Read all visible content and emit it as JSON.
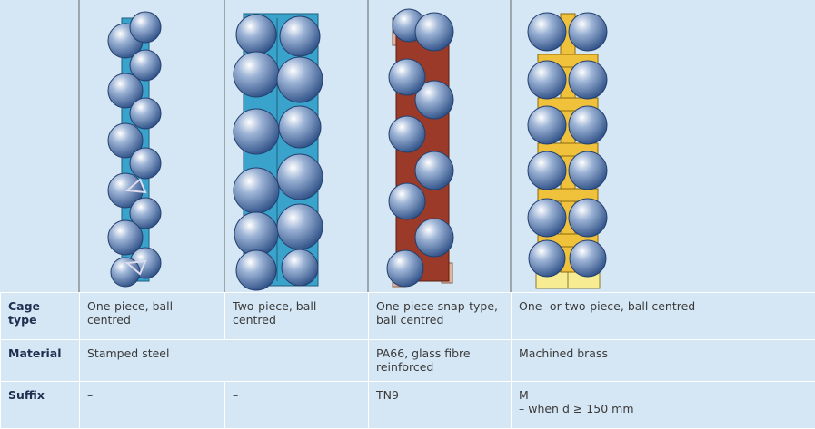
{
  "table": {
    "rows": [
      {
        "label": "Cage type",
        "cells": [
          "One-piece, ball centred",
          "Two-piece, ball centred",
          "One-piece snap-type, ball centred",
          "One- or two-piece, ball centred"
        ]
      },
      {
        "label": "Material",
        "cells": [
          "Stamped steel",
          "PA66, glass fibre reinforced",
          "Machined brass"
        ]
      },
      {
        "label": "Suffix",
        "cells": [
          "–",
          "–",
          "TN9",
          "M"
        ],
        "note": "– when d ≥ 150 mm"
      }
    ]
  }
}
